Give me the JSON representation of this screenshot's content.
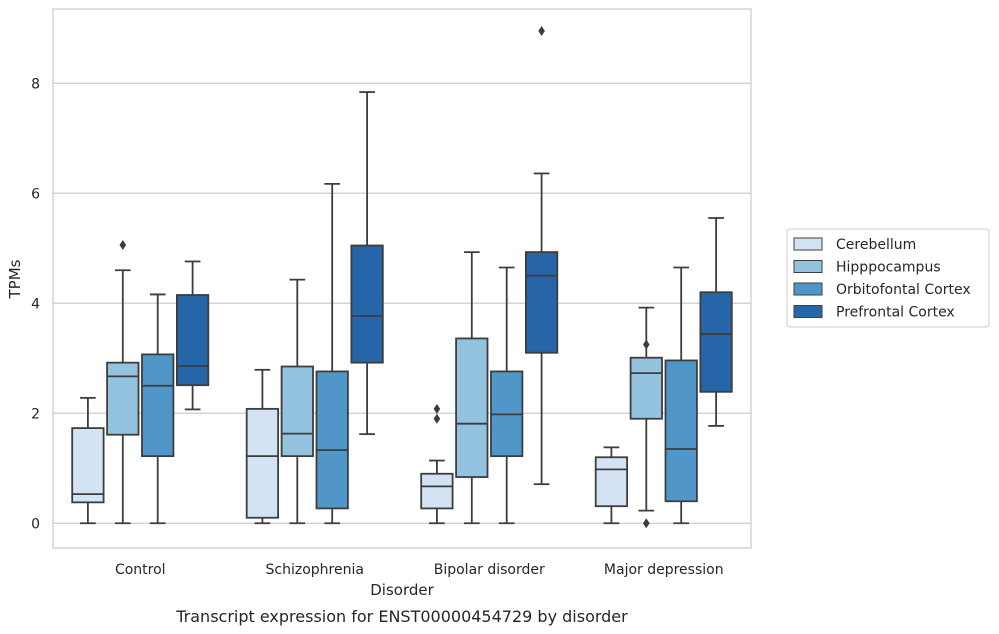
{
  "chart_data": {
    "type": "boxplot",
    "caption": "Transcript expression for ENST00000454729 by disorder",
    "xlabel": "Disorder",
    "ylabel": "TPMs",
    "ylim": [
      -0.45,
      9.35
    ],
    "yticks": [
      0,
      2,
      4,
      6,
      8
    ],
    "grid": true,
    "legend_position": "right",
    "categories": [
      "Control",
      "Schizophrenia",
      "Bipolar disorder",
      "Major depression"
    ],
    "series": [
      {
        "name": "Cerebellum",
        "color": "#d3e3f3",
        "boxes": [
          {
            "whislo": 0,
            "q1": 0.38,
            "med": 0.53,
            "q3": 1.73,
            "whishi": 2.28,
            "fliers": []
          },
          {
            "whislo": 0,
            "q1": 0.1,
            "med": 1.22,
            "q3": 2.08,
            "whishi": 2.79,
            "fliers": []
          },
          {
            "whislo": 0,
            "q1": 0.27,
            "med": 0.67,
            "q3": 0.9,
            "whishi": 1.14,
            "fliers": [
              1.9,
              2.08
            ]
          },
          {
            "whislo": 0,
            "q1": 0.31,
            "med": 0.98,
            "q3": 1.2,
            "whishi": 1.38,
            "fliers": []
          }
        ]
      },
      {
        "name": "Hipppocampus",
        "color": "#93c3df",
        "boxes": [
          {
            "whislo": 0,
            "q1": 1.61,
            "med": 2.67,
            "q3": 2.92,
            "whishi": 4.6,
            "fliers": [
              5.06
            ]
          },
          {
            "whislo": 0,
            "q1": 1.22,
            "med": 1.63,
            "q3": 2.85,
            "whishi": 4.43,
            "fliers": []
          },
          {
            "whislo": 0,
            "q1": 0.84,
            "med": 1.81,
            "q3": 3.36,
            "whishi": 4.93,
            "fliers": []
          },
          {
            "whislo": 0.23,
            "q1": 1.9,
            "med": 2.73,
            "q3": 3.01,
            "whishi": 3.92,
            "fliers": [
              0,
              3.25
            ]
          }
        ]
      },
      {
        "name": "Orbitofontal Cortex",
        "color": "#5096c8",
        "boxes": [
          {
            "whislo": 0,
            "q1": 1.22,
            "med": 2.5,
            "q3": 3.07,
            "whishi": 4.16,
            "fliers": []
          },
          {
            "whislo": 0,
            "q1": 0.27,
            "med": 1.33,
            "q3": 2.76,
            "whishi": 6.17,
            "fliers": []
          },
          {
            "whislo": 0,
            "q1": 1.22,
            "med": 1.98,
            "q3": 2.76,
            "whishi": 4.65,
            "fliers": []
          },
          {
            "whislo": 0,
            "q1": 0.4,
            "med": 1.35,
            "q3": 2.96,
            "whishi": 4.65,
            "fliers": []
          }
        ]
      },
      {
        "name": "Prefrontal Cortex",
        "color": "#2665a8",
        "boxes": [
          {
            "whislo": 2.07,
            "q1": 2.51,
            "med": 2.86,
            "q3": 4.15,
            "whishi": 4.76,
            "fliers": []
          },
          {
            "whislo": 1.62,
            "q1": 2.92,
            "med": 3.77,
            "q3": 5.05,
            "whishi": 7.84,
            "fliers": []
          },
          {
            "whislo": 0.71,
            "q1": 3.1,
            "med": 4.5,
            "q3": 4.93,
            "whishi": 6.36,
            "fliers": [
              8.95
            ]
          },
          {
            "whislo": 1.77,
            "q1": 2.39,
            "med": 3.44,
            "q3": 4.2,
            "whishi": 5.55,
            "fliers": []
          }
        ]
      }
    ]
  }
}
